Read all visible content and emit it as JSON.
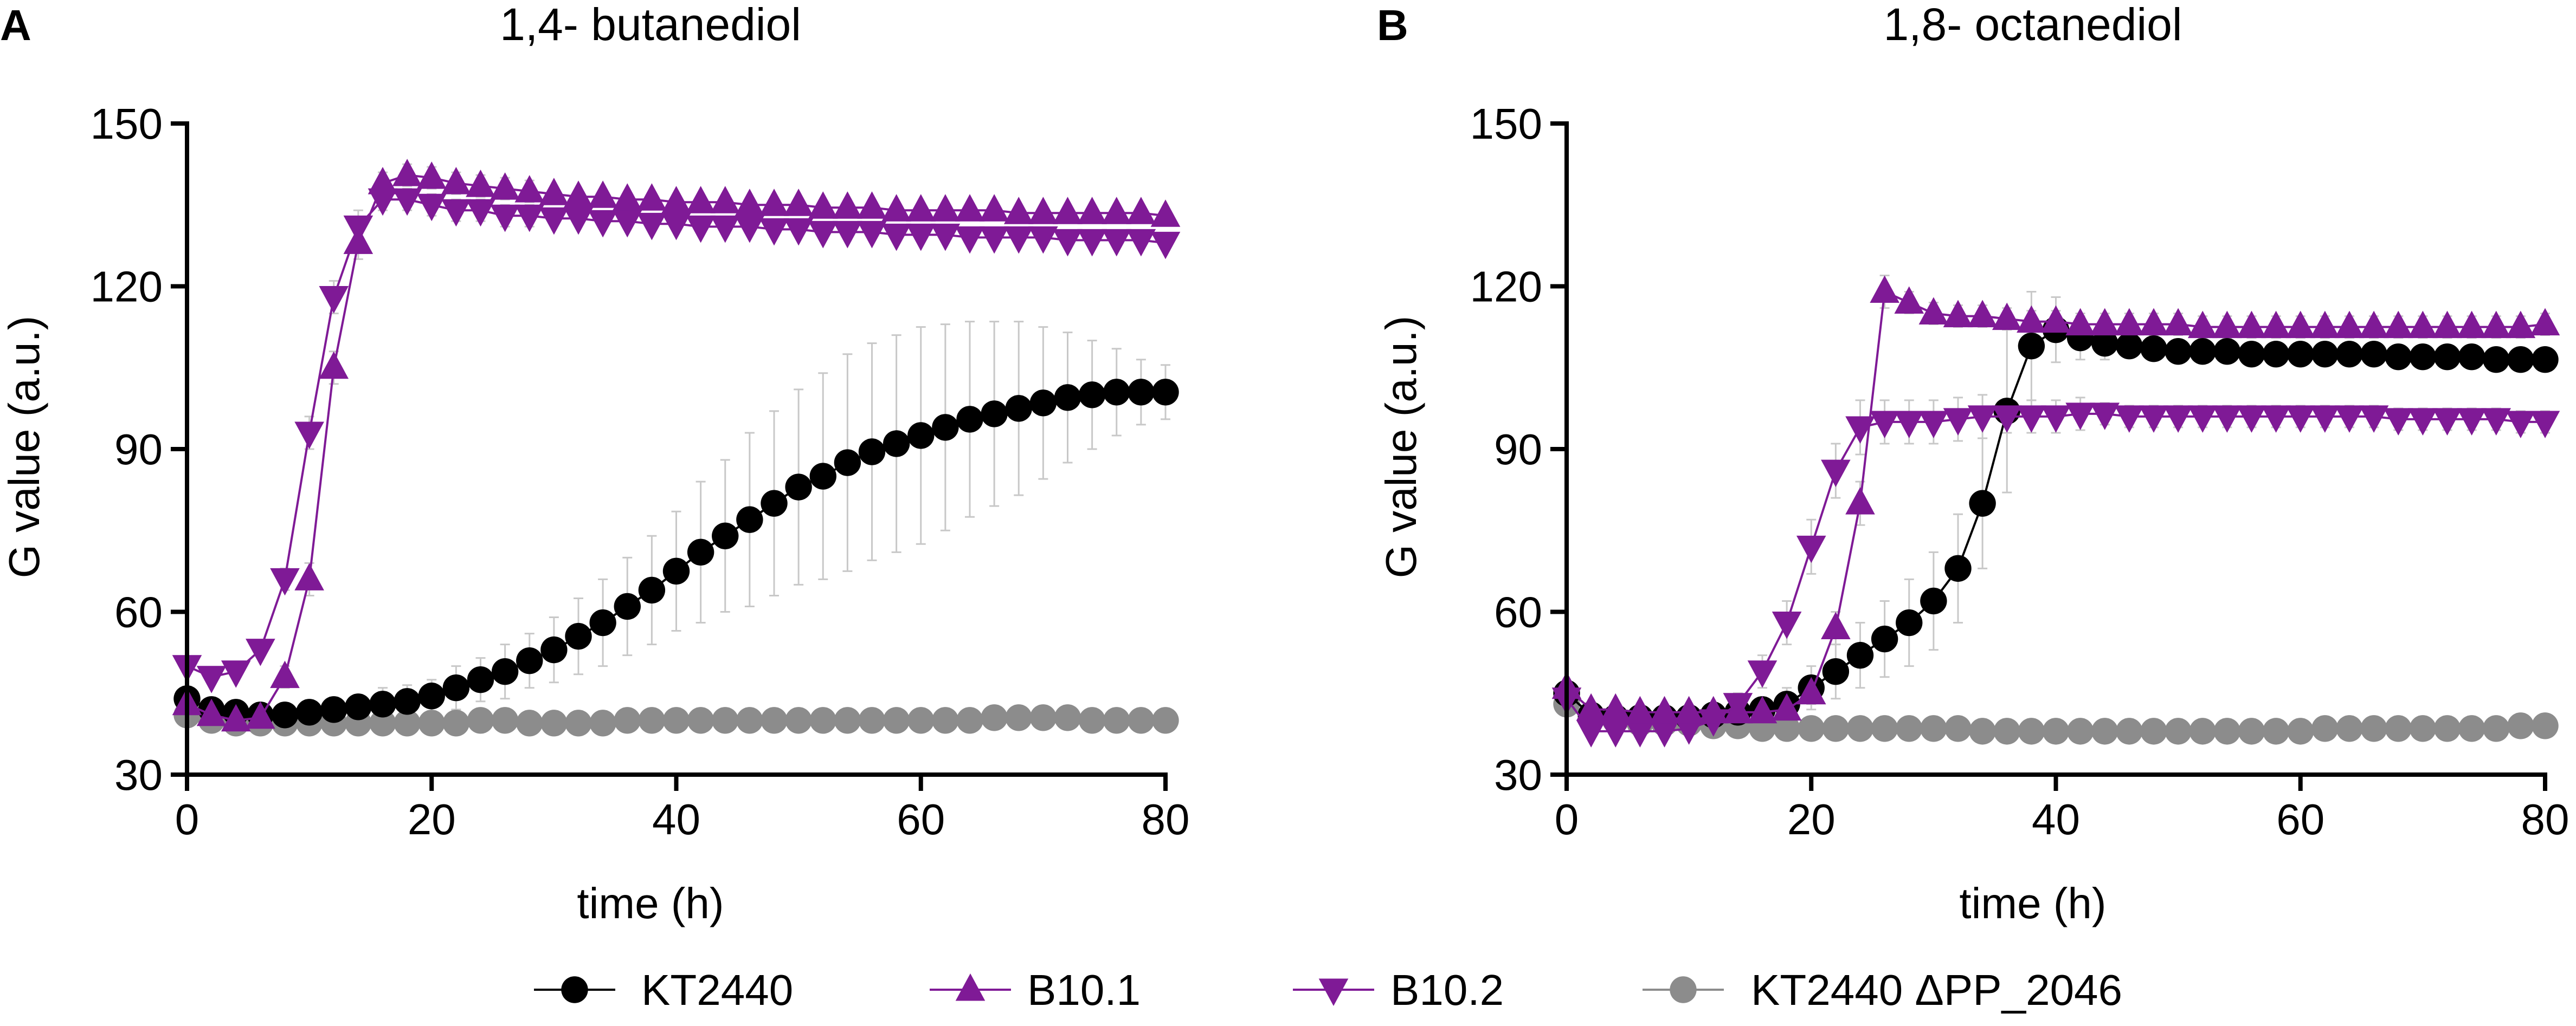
{
  "colors": {
    "kt2440": "#000000",
    "b101": "#7f1a96",
    "b102": "#7f1a96",
    "knockout": "#8c8c8c",
    "errorbar": "#c8c8c8"
  },
  "legend": [
    {
      "label": "KT2440",
      "marker": "circle",
      "color": "#000000"
    },
    {
      "label": "B10.1",
      "marker": "triangle-up",
      "color": "#7f1a96"
    },
    {
      "label": "B10.2",
      "marker": "triangle-down",
      "color": "#7f1a96"
    },
    {
      "label": "KT2440 ΔPP_2046",
      "marker": "circle",
      "color": "#8c8c8c"
    }
  ],
  "chart_data": [
    {
      "panel": "A",
      "type": "line",
      "title": "1,4- butanediol",
      "xlabel": "time (h)",
      "ylabel": "G value (a.u.)",
      "xlim": [
        0,
        80
      ],
      "ylim": [
        30,
        150
      ],
      "xticks": [
        "0",
        "20",
        "40",
        "60",
        "80"
      ],
      "yticks": [
        "30",
        "60",
        "90",
        "120",
        "150"
      ],
      "series": [
        {
          "name": "KT2440",
          "marker": "circle",
          "color": "#000000",
          "x": [
            0,
            2,
            4,
            6,
            8,
            10,
            12,
            14,
            16,
            18,
            20,
            22,
            24,
            26,
            28,
            30,
            32,
            34,
            36,
            38,
            40,
            42,
            44,
            46,
            48,
            50,
            52,
            54,
            56,
            58,
            60,
            62,
            64,
            66,
            68,
            70,
            72,
            74,
            76,
            78,
            80
          ],
          "y": [
            44,
            42,
            41.5,
            41,
            41,
            41.5,
            42,
            42.5,
            43,
            43.5,
            44.5,
            46,
            47.5,
            49,
            51,
            53,
            55.5,
            58,
            61,
            64,
            67.5,
            71,
            74,
            77,
            80,
            83,
            85,
            87.5,
            89.5,
            91,
            92.5,
            94,
            95.5,
            96.5,
            97.5,
            98.5,
            99.5,
            100,
            100.5,
            100.5,
            100.5
          ],
          "err": [
            2,
            2,
            2,
            2,
            2,
            2,
            2,
            2,
            3,
            3,
            3,
            4,
            4,
            5,
            5,
            6,
            7,
            8,
            9,
            10,
            11,
            13,
            14,
            16,
            17,
            18,
            19,
            20,
            20,
            20,
            20,
            19,
            18,
            17,
            16,
            14,
            12,
            10,
            8,
            6,
            5
          ]
        },
        {
          "name": "B10.1",
          "marker": "triangle-up",
          "color": "#7f1a96",
          "x": [
            0,
            2,
            4,
            6,
            8,
            10,
            12,
            14,
            16,
            18,
            20,
            22,
            24,
            26,
            28,
            30,
            32,
            34,
            36,
            38,
            40,
            42,
            44,
            46,
            48,
            50,
            52,
            54,
            56,
            58,
            60,
            62,
            64,
            66,
            68,
            70,
            72,
            74,
            76,
            78,
            80
          ],
          "y": [
            43,
            41,
            40,
            40.5,
            48,
            66,
            105,
            128,
            139,
            140.5,
            140,
            139,
            138.5,
            138,
            137.5,
            137,
            136.5,
            136.5,
            136,
            136,
            135.5,
            135.5,
            135.5,
            135,
            135,
            135,
            134.5,
            134.5,
            134.5,
            134,
            134,
            134,
            134,
            134,
            133.5,
            133.5,
            133.5,
            133.5,
            133.5,
            133.5,
            133
          ],
          "err": [
            1,
            1,
            1,
            1,
            2,
            3,
            3,
            3,
            2,
            2,
            2,
            2,
            2,
            2,
            2,
            1,
            1,
            1,
            1,
            1,
            1,
            1,
            1,
            1,
            1,
            1,
            1,
            1,
            1,
            1,
            1,
            1,
            1,
            1,
            1,
            1,
            1,
            1,
            1,
            1,
            1
          ]
        },
        {
          "name": "B10.2",
          "marker": "triangle-down",
          "color": "#7f1a96",
          "x": [
            0,
            2,
            4,
            6,
            8,
            10,
            12,
            14,
            16,
            18,
            20,
            22,
            24,
            26,
            28,
            30,
            32,
            34,
            36,
            38,
            40,
            42,
            44,
            46,
            48,
            50,
            52,
            54,
            56,
            58,
            60,
            62,
            64,
            66,
            68,
            70,
            72,
            74,
            76,
            78,
            80
          ],
          "y": [
            50,
            48,
            49,
            53,
            66,
            93,
            118,
            131,
            136,
            136,
            135,
            134,
            134,
            133,
            133,
            132.5,
            132.5,
            132,
            132,
            131.5,
            131.5,
            131,
            131,
            131,
            130.5,
            130.5,
            130,
            130,
            130,
            129.5,
            129.5,
            129.5,
            129,
            129,
            129,
            129,
            128.5,
            128.5,
            128.5,
            128.5,
            128
          ],
          "err": [
            1,
            1,
            1,
            1,
            2,
            3,
            3,
            3,
            2,
            2,
            2,
            2,
            2,
            2,
            2,
            1,
            1,
            1,
            1,
            1,
            1,
            1,
            1,
            1,
            1,
            1,
            1,
            1,
            1,
            1,
            1,
            1,
            1,
            1,
            1,
            1,
            1,
            1,
            1,
            1,
            1
          ]
        },
        {
          "name": "KT2440 ΔPP_2046",
          "marker": "circle",
          "color": "#8c8c8c",
          "x": [
            0,
            2,
            4,
            6,
            8,
            10,
            12,
            14,
            16,
            18,
            20,
            22,
            24,
            26,
            28,
            30,
            32,
            34,
            36,
            38,
            40,
            42,
            44,
            46,
            48,
            50,
            52,
            54,
            56,
            58,
            60,
            62,
            64,
            66,
            68,
            70,
            72,
            74,
            76,
            78,
            80
          ],
          "y": [
            41,
            40,
            39.5,
            39.5,
            39.5,
            39.5,
            39.5,
            39.5,
            39.5,
            39.5,
            39.5,
            39.5,
            40,
            40,
            39.5,
            39.5,
            39.5,
            39.5,
            40,
            40,
            40,
            40,
            40,
            40,
            40,
            40,
            40,
            40,
            40,
            40,
            40,
            40,
            40,
            40.5,
            40.5,
            40.5,
            40.5,
            40,
            40,
            40,
            40
          ],
          "err": [
            1,
            1,
            1,
            1,
            1,
            1,
            1,
            1,
            1,
            1,
            1,
            1,
            1,
            1,
            1,
            1,
            1,
            1,
            1,
            1,
            1,
            1,
            1,
            1,
            1,
            1,
            1,
            1,
            1,
            1,
            1,
            1,
            1,
            1,
            1,
            1,
            1,
            1,
            1,
            1,
            1
          ]
        }
      ]
    },
    {
      "panel": "B",
      "type": "line",
      "title": "1,8- octanediol",
      "xlabel": "time (h)",
      "ylabel": "G value (a.u.)",
      "xlim": [
        0,
        80
      ],
      "ylim": [
        30,
        150
      ],
      "xticks": [
        "0",
        "20",
        "40",
        "60",
        "80"
      ],
      "yticks": [
        "30",
        "60",
        "90",
        "120",
        "150"
      ],
      "series": [
        {
          "name": "KT2440",
          "marker": "circle",
          "color": "#000000",
          "x": [
            0,
            2,
            4,
            6,
            8,
            10,
            12,
            14,
            16,
            18,
            20,
            22,
            24,
            26,
            28,
            30,
            32,
            34,
            36,
            38,
            40,
            42,
            44,
            46,
            48,
            50,
            52,
            54,
            56,
            58,
            60,
            62,
            64,
            66,
            68,
            70,
            72,
            74,
            76,
            78,
            80
          ],
          "y": [
            45,
            41,
            40.5,
            40.5,
            40.5,
            40.5,
            41,
            41.5,
            42,
            43,
            46,
            49,
            52,
            55,
            58,
            62,
            68,
            80,
            97,
            109,
            112,
            110.5,
            109.5,
            109,
            108.5,
            108,
            108,
            108,
            107.5,
            107.5,
            107.5,
            107.5,
            107.5,
            107.5,
            107,
            107,
            107,
            107,
            106.5,
            106.5,
            106.5
          ],
          "err": [
            2,
            2,
            2,
            2,
            2,
            2,
            2,
            2,
            2,
            3,
            4,
            5,
            6,
            7,
            8,
            9,
            10,
            12,
            15,
            10,
            6,
            4,
            3,
            2,
            2,
            2,
            2,
            2,
            2,
            2,
            2,
            2,
            2,
            2,
            2,
            2,
            2,
            2,
            2,
            2,
            2
          ]
        },
        {
          "name": "B10.1",
          "marker": "triangle-up",
          "color": "#7f1a96",
          "x": [
            0,
            2,
            4,
            6,
            8,
            10,
            12,
            14,
            16,
            18,
            20,
            22,
            24,
            26,
            28,
            30,
            32,
            34,
            36,
            38,
            40,
            42,
            44,
            46,
            48,
            50,
            52,
            54,
            56,
            58,
            60,
            62,
            64,
            66,
            68,
            70,
            72,
            74,
            76,
            78,
            80
          ],
          "y": [
            46,
            42,
            42,
            41.5,
            41.5,
            41.5,
            41.5,
            41.5,
            41.5,
            42,
            45,
            57,
            80,
            119,
            117,
            115,
            114.5,
            114.5,
            114,
            113.5,
            113.5,
            113,
            113,
            113,
            113,
            113,
            112.5,
            112.5,
            112.5,
            112.5,
            112.5,
            112.5,
            112.5,
            112.5,
            112.5,
            112.5,
            112.5,
            112.5,
            112.5,
            112.5,
            113
          ],
          "err": [
            1,
            1,
            1,
            1,
            1,
            1,
            1,
            1,
            1,
            1,
            2,
            3,
            4,
            3,
            2,
            2,
            2,
            2,
            2,
            2,
            2,
            2,
            2,
            2,
            2,
            2,
            2,
            2,
            2,
            2,
            2,
            2,
            2,
            2,
            2,
            2,
            2,
            2,
            2,
            2,
            2
          ]
        },
        {
          "name": "B10.2",
          "marker": "triangle-down",
          "color": "#7f1a96",
          "x": [
            0,
            2,
            4,
            6,
            8,
            10,
            12,
            14,
            16,
            18,
            20,
            22,
            24,
            26,
            28,
            30,
            32,
            34,
            36,
            38,
            40,
            42,
            44,
            46,
            48,
            50,
            52,
            54,
            56,
            58,
            60,
            62,
            64,
            66,
            68,
            70,
            72,
            74,
            76,
            78,
            80
          ],
          "y": [
            44,
            38,
            38,
            38,
            38,
            38.5,
            40,
            43,
            49,
            58,
            72,
            86,
            94,
            95,
            95,
            95,
            95.5,
            96,
            96,
            96,
            96,
            96.5,
            96.5,
            96,
            96,
            96,
            96,
            96,
            96,
            96,
            96,
            96,
            96,
            96,
            95.5,
            95.5,
            95.5,
            95.5,
            95.5,
            95,
            95
          ],
          "err": [
            1,
            1,
            1,
            1,
            1,
            1,
            1,
            2,
            3,
            4,
            5,
            5,
            5,
            4,
            4,
            4,
            4,
            4,
            3,
            3,
            3,
            3,
            2,
            2,
            2,
            2,
            2,
            2,
            2,
            2,
            2,
            2,
            2,
            2,
            2,
            2,
            2,
            2,
            2,
            2,
            2
          ]
        },
        {
          "name": "KT2440 ΔPP_2046",
          "marker": "circle",
          "color": "#8c8c8c",
          "x": [
            0,
            2,
            4,
            6,
            8,
            10,
            12,
            14,
            16,
            18,
            20,
            22,
            24,
            26,
            28,
            30,
            32,
            34,
            36,
            38,
            40,
            42,
            44,
            46,
            48,
            50,
            52,
            54,
            56,
            58,
            60,
            62,
            64,
            66,
            68,
            70,
            72,
            74,
            76,
            78,
            80
          ],
          "y": [
            43,
            40.5,
            40,
            39.5,
            39.5,
            39.5,
            39,
            39,
            38.5,
            38.5,
            38.5,
            38.5,
            38.5,
            38.5,
            38.5,
            38.5,
            38.5,
            38,
            38,
            38,
            38,
            38,
            38,
            38,
            38,
            38,
            38,
            38,
            38,
            38,
            38,
            38.5,
            38.5,
            38.5,
            38.5,
            38.5,
            38.5,
            38.5,
            38.5,
            39,
            39
          ],
          "err": [
            1,
            1,
            1,
            1,
            1,
            1,
            1,
            1,
            1,
            1,
            1,
            1,
            1,
            1,
            1,
            1,
            1,
            1,
            1,
            1,
            1,
            1,
            1,
            1,
            1,
            1,
            1,
            1,
            1,
            1,
            1,
            1,
            1,
            1,
            1,
            1,
            1,
            1,
            1,
            1,
            1
          ]
        }
      ]
    }
  ]
}
